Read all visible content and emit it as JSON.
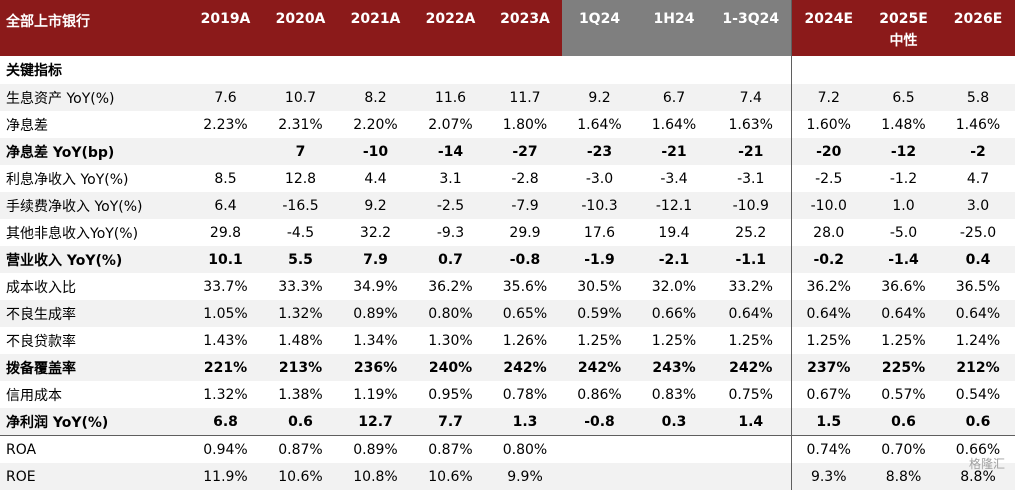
{
  "table": {
    "header_label": "全部上市银行",
    "columns": [
      "2019A",
      "2020A",
      "2021A",
      "2022A",
      "2023A",
      "1Q24",
      "1H24",
      "1-3Q24",
      "2024E",
      "2025E",
      "2026E"
    ],
    "scenario_label": "中性",
    "section_label": "关键指标",
    "rows": [
      {
        "label": "生息资产 YoY(%)",
        "values": [
          "7.6",
          "10.7",
          "8.2",
          "11.6",
          "11.7",
          "9.2",
          "6.7",
          "7.4",
          "7.2",
          "6.5",
          "5.8"
        ]
      },
      {
        "label": "净息差",
        "values": [
          "2.23%",
          "2.31%",
          "2.20%",
          "2.07%",
          "1.80%",
          "1.64%",
          "1.64%",
          "1.63%",
          "1.60%",
          "1.48%",
          "1.46%"
        ]
      },
      {
        "label": "净息差 YoY(bp)",
        "values": [
          "",
          "7",
          "-10",
          "-14",
          "-27",
          "-23",
          "-21",
          "-21",
          "-20",
          "-12",
          "-2"
        ]
      },
      {
        "label": "利息净收入 YoY(%)",
        "values": [
          "8.5",
          "12.8",
          "4.4",
          "3.1",
          "-2.8",
          "-3.0",
          "-3.4",
          "-3.1",
          "-2.5",
          "-1.2",
          "4.7"
        ]
      },
      {
        "label": "手续费净收入 YoY(%)",
        "values": [
          "6.4",
          "-16.5",
          "9.2",
          "-2.5",
          "-7.9",
          "-10.3",
          "-12.1",
          "-10.9",
          "-10.0",
          "1.0",
          "3.0"
        ]
      },
      {
        "label": "其他非息收入YoY(%)",
        "values": [
          "29.8",
          "-4.5",
          "32.2",
          "-9.3",
          "29.9",
          "17.6",
          "19.4",
          "25.2",
          "28.0",
          "-5.0",
          "-25.0"
        ]
      },
      {
        "label": "营业收入 YoY(%)",
        "values": [
          "10.1",
          "5.5",
          "7.9",
          "0.7",
          "-0.8",
          "-1.9",
          "-2.1",
          "-1.1",
          "-0.2",
          "-1.4",
          "0.4"
        ]
      },
      {
        "label": "成本收入比",
        "values": [
          "33.7%",
          "33.3%",
          "34.9%",
          "36.2%",
          "35.6%",
          "30.5%",
          "32.0%",
          "33.2%",
          "36.2%",
          "36.6%",
          "36.5%"
        ]
      },
      {
        "label": "不良生成率",
        "values": [
          "1.05%",
          "1.32%",
          "0.89%",
          "0.80%",
          "0.65%",
          "0.59%",
          "0.66%",
          "0.64%",
          "0.64%",
          "0.64%",
          "0.64%"
        ]
      },
      {
        "label": "不良贷款率",
        "values": [
          "1.43%",
          "1.48%",
          "1.34%",
          "1.30%",
          "1.26%",
          "1.25%",
          "1.25%",
          "1.25%",
          "1.25%",
          "1.25%",
          "1.24%"
        ]
      },
      {
        "label": "拨备覆盖率",
        "values": [
          "221%",
          "213%",
          "236%",
          "240%",
          "242%",
          "242%",
          "243%",
          "242%",
          "237%",
          "225%",
          "212%"
        ]
      },
      {
        "label": "信用成本",
        "values": [
          "1.32%",
          "1.38%",
          "1.19%",
          "0.95%",
          "0.78%",
          "0.86%",
          "0.83%",
          "0.75%",
          "0.67%",
          "0.57%",
          "0.54%"
        ]
      },
      {
        "label": "净利润 YoY(%)",
        "values": [
          "6.8",
          "0.6",
          "12.7",
          "7.7",
          "1.3",
          "-0.8",
          "0.3",
          "1.4",
          "1.5",
          "0.6",
          "0.6"
        ]
      },
      {
        "label": "ROA",
        "values": [
          "0.94%",
          "0.87%",
          "0.89%",
          "0.87%",
          "0.80%",
          "",
          "",
          "",
          "0.74%",
          "0.70%",
          "0.66%"
        ]
      },
      {
        "label": "ROE",
        "values": [
          "11.9%",
          "10.6%",
          "10.8%",
          "10.6%",
          "9.9%",
          "",
          "",
          "",
          "9.3%",
          "8.8%",
          "8.8%"
        ]
      }
    ]
  },
  "watermark": "格隆汇",
  "colors": {
    "header_bg": "#8b1a1a",
    "quarter_header_bg": "#7f7f7f",
    "shade": "#f2f2f2"
  }
}
